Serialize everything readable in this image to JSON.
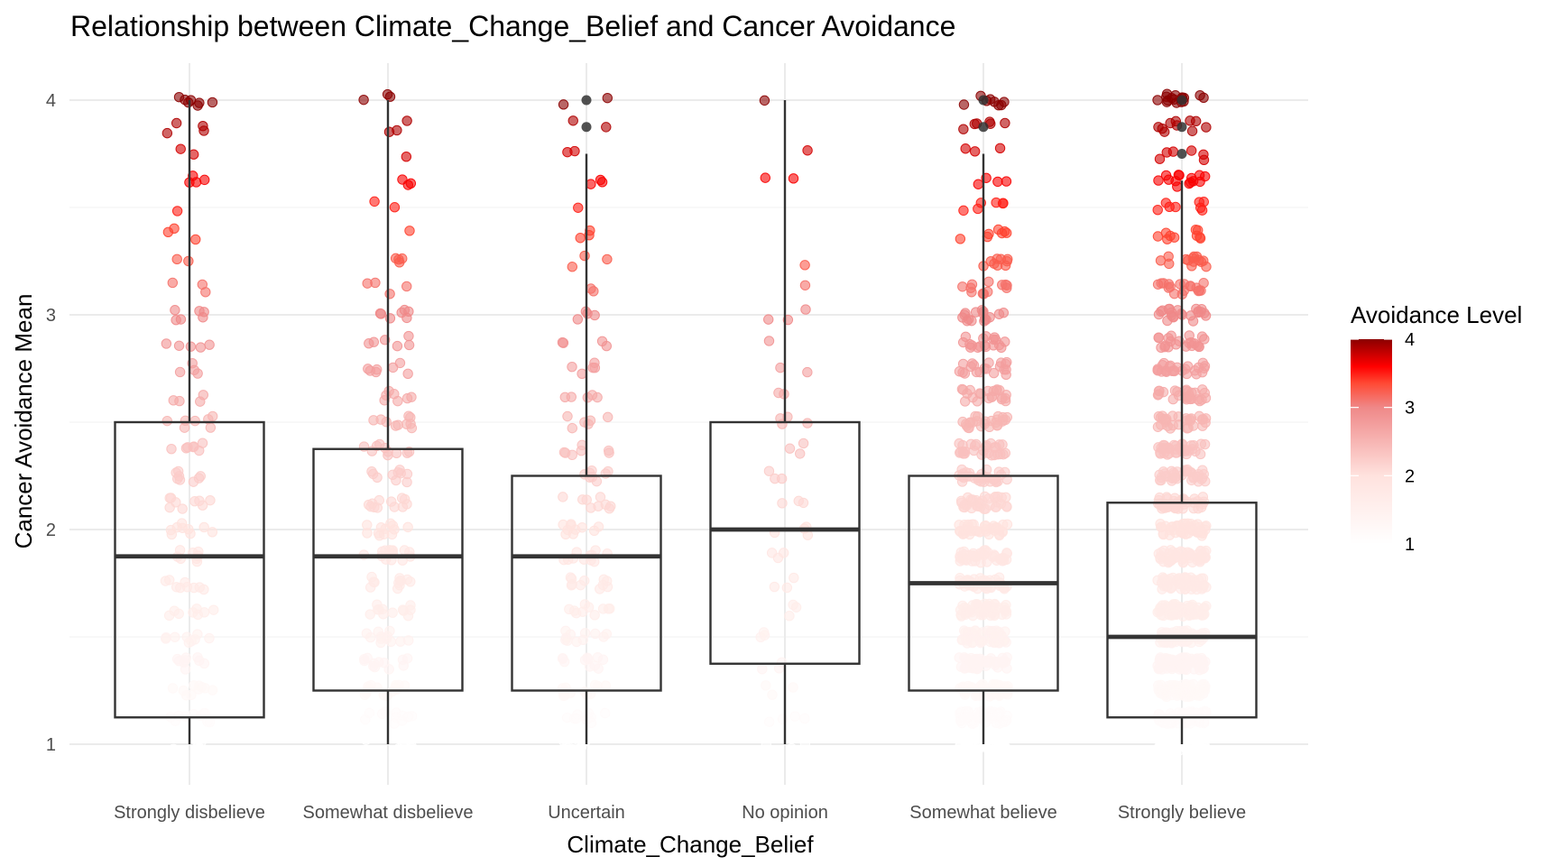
{
  "chart_data": {
    "type": "box",
    "overlay": "jitter-scatter",
    "title": "Relationship between Climate_Change_Belief and Cancer Avoidance",
    "xlabel": "Climate_Change_Belief",
    "ylabel": "Cancer Avoidance Mean",
    "ylim": [
      0.8,
      4.15
    ],
    "yticks": [
      1,
      2,
      3,
      4
    ],
    "grid": true,
    "categories": [
      "Strongly disbelieve",
      "Somewhat disbelieve",
      "Uncertain",
      "No opinion",
      "Somewhat believe",
      "Strongly believe"
    ],
    "boxes": [
      {
        "category": "Strongly disbelieve",
        "lower_whisker": 1.0,
        "q1": 1.125,
        "median": 1.875,
        "q3": 2.5,
        "upper_whisker": 4.0,
        "outliers": []
      },
      {
        "category": "Somewhat disbelieve",
        "lower_whisker": 1.0,
        "q1": 1.25,
        "median": 1.875,
        "q3": 2.375,
        "upper_whisker": 4.0,
        "outliers": []
      },
      {
        "category": "Uncertain",
        "lower_whisker": 1.0,
        "q1": 1.25,
        "median": 1.875,
        "q3": 2.25,
        "upper_whisker": 3.75,
        "outliers": [
          4.0,
          3.875
        ]
      },
      {
        "category": "No opinion",
        "lower_whisker": 1.0,
        "q1": 1.375,
        "median": 2.0,
        "q3": 2.5,
        "upper_whisker": 4.0,
        "outliers": []
      },
      {
        "category": "Somewhat believe",
        "lower_whisker": 1.0,
        "q1": 1.25,
        "median": 1.75,
        "q3": 2.25,
        "upper_whisker": 3.75,
        "outliers": [
          4.0,
          3.875
        ]
      },
      {
        "category": "Strongly believe",
        "lower_whisker": 1.0,
        "q1": 1.125,
        "median": 1.5,
        "q3": 2.125,
        "upper_whisker": 3.625,
        "outliers": [
          4.0,
          3.875,
          3.75
        ]
      }
    ],
    "point_counts": {
      "levels": [
        1.0,
        1.125,
        1.25,
        1.375,
        1.5,
        1.625,
        1.75,
        1.875,
        2.0,
        2.125,
        2.25,
        2.375,
        2.5,
        2.625,
        2.75,
        2.875,
        3.0,
        3.125,
        3.25,
        3.375,
        3.5,
        3.625,
        3.75,
        3.875,
        4.0
      ],
      "series": [
        {
          "category": "Strongly disbelieve",
          "counts": [
            6,
            10,
            10,
            9,
            9,
            8,
            9,
            9,
            9,
            9,
            8,
            7,
            7,
            4,
            4,
            5,
            6,
            3,
            2,
            3,
            1,
            4,
            2,
            4,
            7
          ]
        },
        {
          "category": "Somewhat disbelieve",
          "counts": [
            8,
            12,
            14,
            12,
            12,
            12,
            12,
            14,
            12,
            12,
            10,
            10,
            10,
            7,
            7,
            6,
            7,
            4,
            4,
            1,
            2,
            3,
            1,
            3,
            3
          ]
        },
        {
          "category": "Uncertain",
          "counts": [
            7,
            10,
            12,
            11,
            11,
            10,
            11,
            11,
            10,
            9,
            8,
            7,
            6,
            5,
            5,
            4,
            4,
            2,
            3,
            3,
            1,
            3,
            2,
            2,
            2
          ]
        },
        {
          "category": "No opinion",
          "counts": [
            3,
            4,
            3,
            3,
            3,
            3,
            3,
            3,
            4,
            3,
            3,
            3,
            4,
            2,
            2,
            1,
            3,
            1,
            1,
            0,
            0,
            2,
            1,
            0,
            1
          ]
        },
        {
          "category": "Somewhat believe",
          "counts": [
            40,
            60,
            60,
            55,
            50,
            48,
            45,
            42,
            40,
            36,
            32,
            28,
            26,
            22,
            20,
            18,
            16,
            12,
            9,
            7,
            6,
            4,
            3,
            6,
            8
          ]
        },
        {
          "category": "Strongly believe",
          "counts": [
            55,
            80,
            75,
            70,
            65,
            60,
            55,
            50,
            46,
            42,
            38,
            34,
            30,
            28,
            26,
            22,
            22,
            18,
            14,
            10,
            8,
            14,
            6,
            10,
            16
          ]
        }
      ]
    },
    "legend": {
      "title": "Avoidance Level",
      "type": "colorbar",
      "placement": "right",
      "range": [
        1,
        4
      ],
      "ticks": [
        "1",
        "2",
        "3",
        "4"
      ],
      "color_stops": [
        {
          "value": 1.0,
          "color": "#ffffff"
        },
        {
          "value": 2.0,
          "color": "#ffe2de"
        },
        {
          "value": 3.0,
          "color": "#ef8888"
        },
        {
          "value": 3.35,
          "color": "#ff4a35"
        },
        {
          "value": 3.6,
          "color": "#ff0000"
        },
        {
          "value": 4.0,
          "color": "#8b0000"
        }
      ]
    },
    "colors": {
      "box": "#333333",
      "outlier": "#333333",
      "grid": "#ebebeb"
    }
  }
}
